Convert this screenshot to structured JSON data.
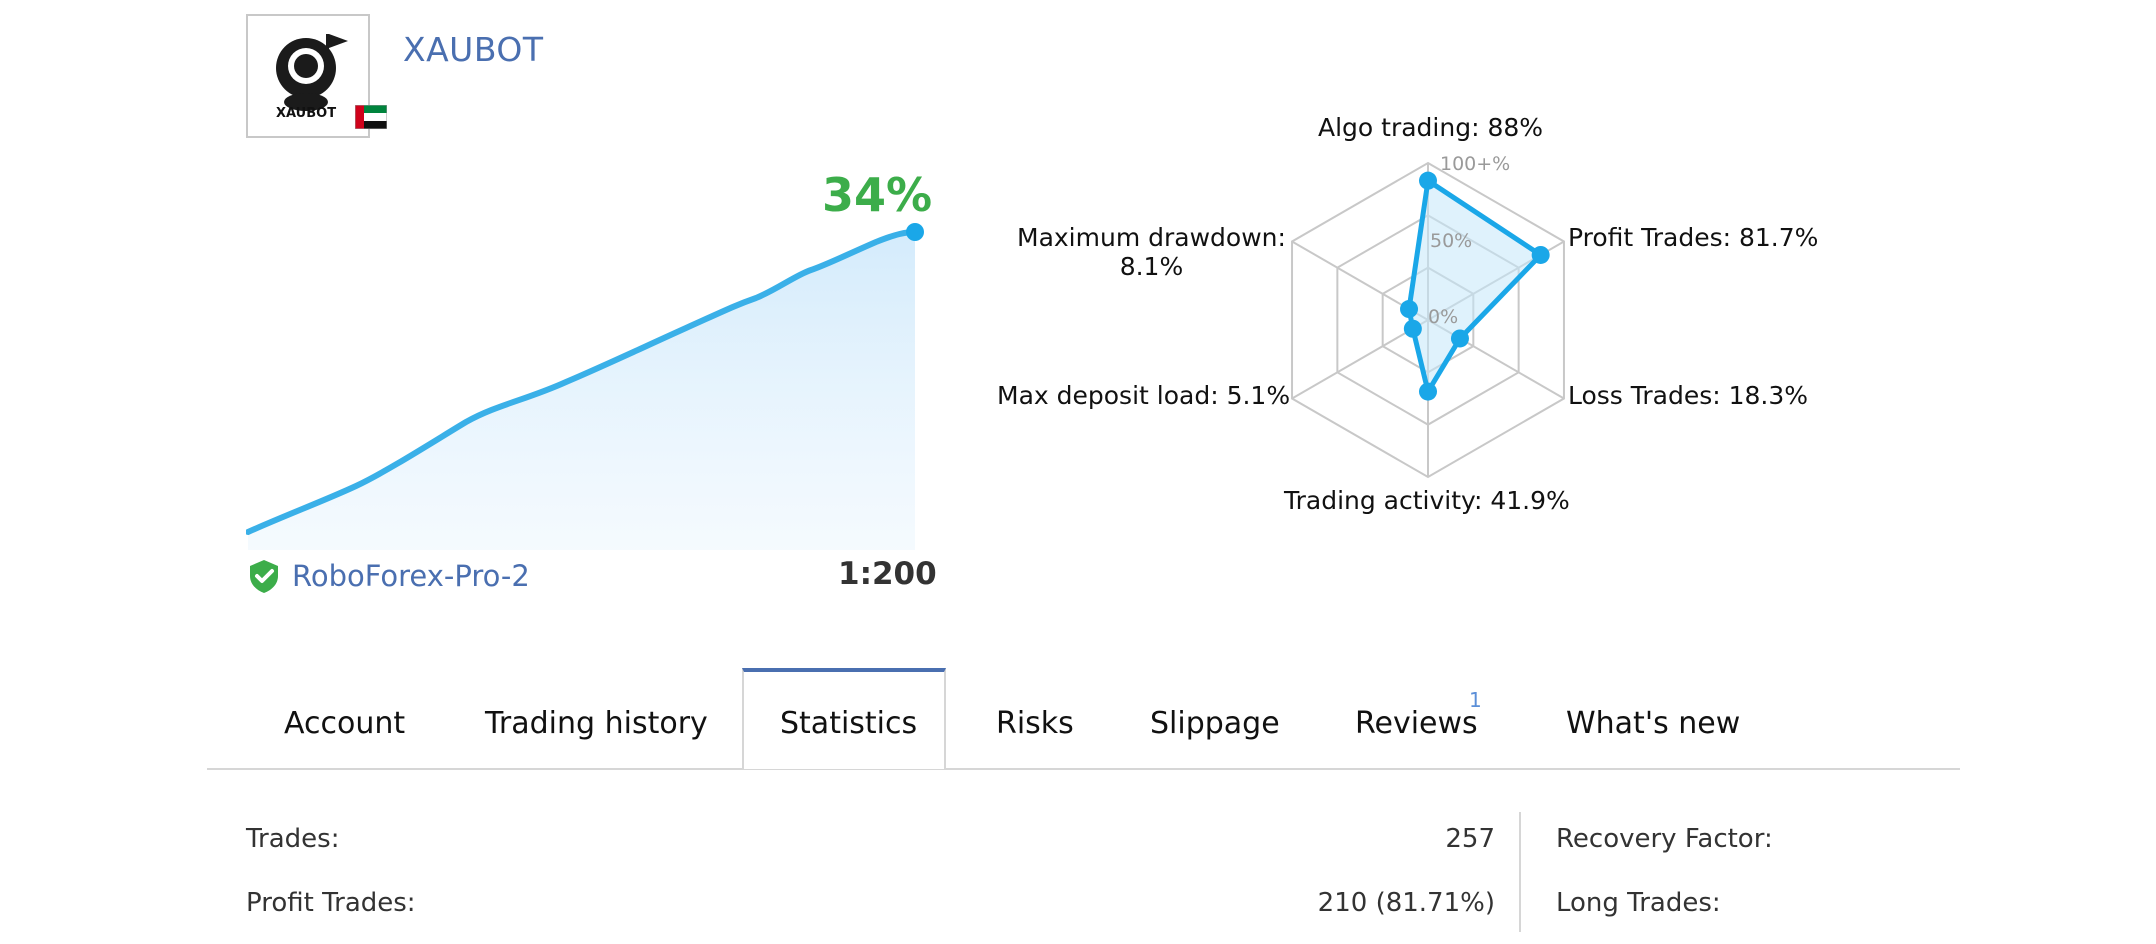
{
  "signal": {
    "name": "XAUBOT",
    "logo_text": "XAUBOT",
    "flag": "uae-flag-icon"
  },
  "growth": {
    "value_label": "34%",
    "broker": "RoboForex-Pro-2",
    "leverage": "1:200",
    "verified_icon": "verified-shield-icon"
  },
  "radar": {
    "scale_labels": [
      "100+%",
      "50%",
      "0%"
    ],
    "axes": [
      {
        "label": "Algo trading: 88%",
        "value": 88
      },
      {
        "label": "Profit Trades: 81.7%",
        "value": 81.7
      },
      {
        "label": "Loss Trades: 18.3%",
        "value": 18.3
      },
      {
        "label": "Trading activity: 41.9%",
        "value": 41.9
      },
      {
        "label": "Max deposit load: 5.1%",
        "value": 5.1
      },
      {
        "label_line1": "Maximum drawdown:",
        "label_line2": "8.1%",
        "value": 8.1
      }
    ]
  },
  "tabs": {
    "items": [
      "Account",
      "Trading history",
      "Statistics",
      "Risks",
      "Slippage",
      "Reviews",
      "What's new"
    ],
    "active": "Statistics",
    "reviews_badge": "1"
  },
  "stats": {
    "rows": [
      {
        "label": "Trades:",
        "value": "257"
      },
      {
        "label": "Profit Trades:",
        "value": "210 (81.71%)"
      }
    ],
    "right_rows": [
      {
        "label": "Recovery Factor:"
      },
      {
        "label": "Long Trades:"
      }
    ]
  },
  "colors": {
    "accent_blue": "#4a6fb0",
    "green": "#3cad4a",
    "chart_line": "#3ab0e8",
    "radar_line": "#1aa7e8"
  }
}
